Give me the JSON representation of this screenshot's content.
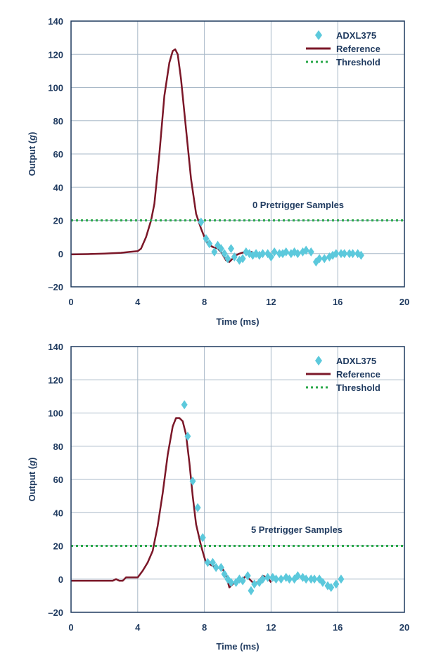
{
  "colors": {
    "axis": "#1f3a5f",
    "grid": "#a9b9c8",
    "reference": "#7b1728",
    "adxl": "#5cc9dc",
    "threshold": "#2aa84a"
  },
  "chart_data": [
    {
      "type": "line",
      "annotation": "0 Pretrigger Samples",
      "xlabel": "Time (ms)",
      "ylabel_prefix": "Output (",
      "ylabel_unit": "g",
      "ylabel_suffix": ")",
      "xlim": [
        0,
        20
      ],
      "ylim": [
        -20,
        140
      ],
      "xticks": [
        0,
        4,
        8,
        12,
        16,
        20
      ],
      "yticks": [
        -20,
        0,
        20,
        40,
        60,
        80,
        100,
        120,
        140
      ],
      "xtick_labels": [
        "0",
        "4",
        "8",
        "12",
        "16",
        "20"
      ],
      "ytick_labels": [
        "–20",
        "0",
        "20",
        "40",
        "60",
        "80",
        "100",
        "120",
        "140"
      ],
      "legend": {
        "position": "top-right",
        "entries": [
          "ADXL375",
          "Reference",
          "Threshold"
        ]
      },
      "series": [
        {
          "name": "ADXL375",
          "kind": "markers",
          "x": [
            7.8,
            8.1,
            8.3,
            8.6,
            8.8,
            9.0,
            9.2,
            9.4,
            9.6,
            9.8,
            10.1,
            10.3,
            10.5,
            10.7,
            10.9,
            11.1,
            11.3,
            11.5,
            11.8,
            12.0,
            12.2,
            12.5,
            12.7,
            12.9,
            13.2,
            13.4,
            13.6,
            13.9,
            14.1,
            14.4,
            14.7,
            14.9,
            15.2,
            15.5,
            15.7,
            15.9,
            16.2,
            16.4,
            16.7,
            16.9,
            17.2,
            17.4
          ],
          "y": [
            19,
            9,
            6,
            1,
            5,
            3,
            0,
            -3,
            3,
            -2,
            -4,
            -3,
            1,
            0,
            -1,
            0,
            -1,
            0,
            0,
            -2,
            1,
            0,
            0,
            1,
            0,
            1,
            0,
            1,
            2,
            1,
            -5,
            -3,
            -3,
            -2,
            -1,
            0,
            0,
            0,
            0,
            0,
            0,
            -1
          ]
        },
        {
          "name": "Reference",
          "kind": "line",
          "x": [
            0,
            1,
            2,
            3,
            3.5,
            4.0,
            4.2,
            4.5,
            4.8,
            5.0,
            5.3,
            5.6,
            5.9,
            6.1,
            6.25,
            6.4,
            6.6,
            6.9,
            7.2,
            7.5,
            7.8,
            8.0,
            8.2,
            8.5,
            8.8,
            9.0,
            9.3,
            9.5,
            9.7,
            9.9,
            10.1,
            10.4,
            10.6,
            10.8,
            11.0,
            11.5,
            12.0
          ],
          "y": [
            -0.5,
            -0.3,
            0,
            0.5,
            1,
            1.5,
            3,
            10,
            20,
            30,
            60,
            95,
            115,
            122,
            123,
            120,
            105,
            75,
            45,
            24,
            15,
            10,
            6,
            4,
            3,
            1,
            -4,
            -5,
            -3,
            -1,
            0,
            1,
            0,
            1,
            0,
            0,
            0
          ]
        },
        {
          "name": "Threshold",
          "kind": "dotted",
          "x": [
            0,
            20
          ],
          "y": [
            20,
            20
          ]
        }
      ]
    },
    {
      "type": "line",
      "annotation": "5 Pretrigger Samples",
      "xlabel": "Time (ms)",
      "ylabel_prefix": "Output (",
      "ylabel_unit": "g",
      "ylabel_suffix": ")",
      "xlim": [
        0,
        20
      ],
      "ylim": [
        -20,
        140
      ],
      "xticks": [
        0,
        4,
        8,
        12,
        16,
        20
      ],
      "yticks": [
        -20,
        0,
        20,
        40,
        60,
        80,
        100,
        120,
        140
      ],
      "xtick_labels": [
        "0",
        "4",
        "8",
        "12",
        "16",
        "20"
      ],
      "ytick_labels": [
        "–20",
        "0",
        "20",
        "40",
        "60",
        "80",
        "100",
        "120",
        "140"
      ],
      "legend": {
        "position": "top-right",
        "entries": [
          "ADXL375",
          "Reference",
          "Threshold"
        ]
      },
      "series": [
        {
          "name": "ADXL375",
          "kind": "markers",
          "x": [
            6.8,
            7.0,
            7.3,
            7.6,
            7.9,
            8.2,
            8.5,
            8.7,
            9.0,
            9.2,
            9.4,
            9.6,
            9.9,
            10.1,
            10.3,
            10.6,
            10.8,
            11.0,
            11.3,
            11.5,
            11.8,
            12.1,
            12.3,
            12.6,
            12.9,
            13.1,
            13.4,
            13.6,
            13.9,
            14.1,
            14.4,
            14.6,
            14.9,
            15.1,
            15.4,
            15.6,
            15.9,
            16.2
          ],
          "y": [
            105,
            86,
            59,
            43,
            25,
            10,
            10,
            7,
            7,
            3,
            0,
            -2,
            -2,
            0,
            -1,
            2,
            -7,
            -3,
            -2,
            0,
            1,
            1,
            0,
            0,
            1,
            0,
            0,
            2,
            1,
            0,
            0,
            0,
            0,
            -2,
            -4,
            -5,
            -3,
            0
          ]
        },
        {
          "name": "Reference",
          "kind": "line",
          "x": [
            0,
            1,
            2,
            2.5,
            2.7,
            2.9,
            3.1,
            3.3,
            3.6,
            4.0,
            4.3,
            4.6,
            4.9,
            5.2,
            5.5,
            5.8,
            6.1,
            6.3,
            6.5,
            6.7,
            6.9,
            7.1,
            7.3,
            7.5,
            7.8,
            8.0,
            8.1,
            8.3,
            8.5,
            8.8,
            9.1,
            9.3,
            9.5,
            9.8,
            10.1,
            10.3,
            10.5,
            10.8,
            11.0,
            11.3,
            11.5,
            11.8,
            12.0
          ],
          "y": [
            -1,
            -1,
            -1,
            -1,
            0,
            -1,
            -1,
            1,
            1,
            1,
            5,
            10,
            17,
            32,
            52,
            75,
            92,
            97,
            97,
            95,
            87,
            70,
            50,
            33,
            20,
            13,
            10,
            9,
            8,
            7,
            6,
            2,
            -5,
            -2,
            0,
            0,
            2,
            -1,
            -3,
            -1,
            2,
            1,
            -2
          ]
        },
        {
          "name": "Threshold",
          "kind": "dotted",
          "x": [
            0,
            20
          ],
          "y": [
            20,
            20
          ]
        }
      ]
    }
  ]
}
